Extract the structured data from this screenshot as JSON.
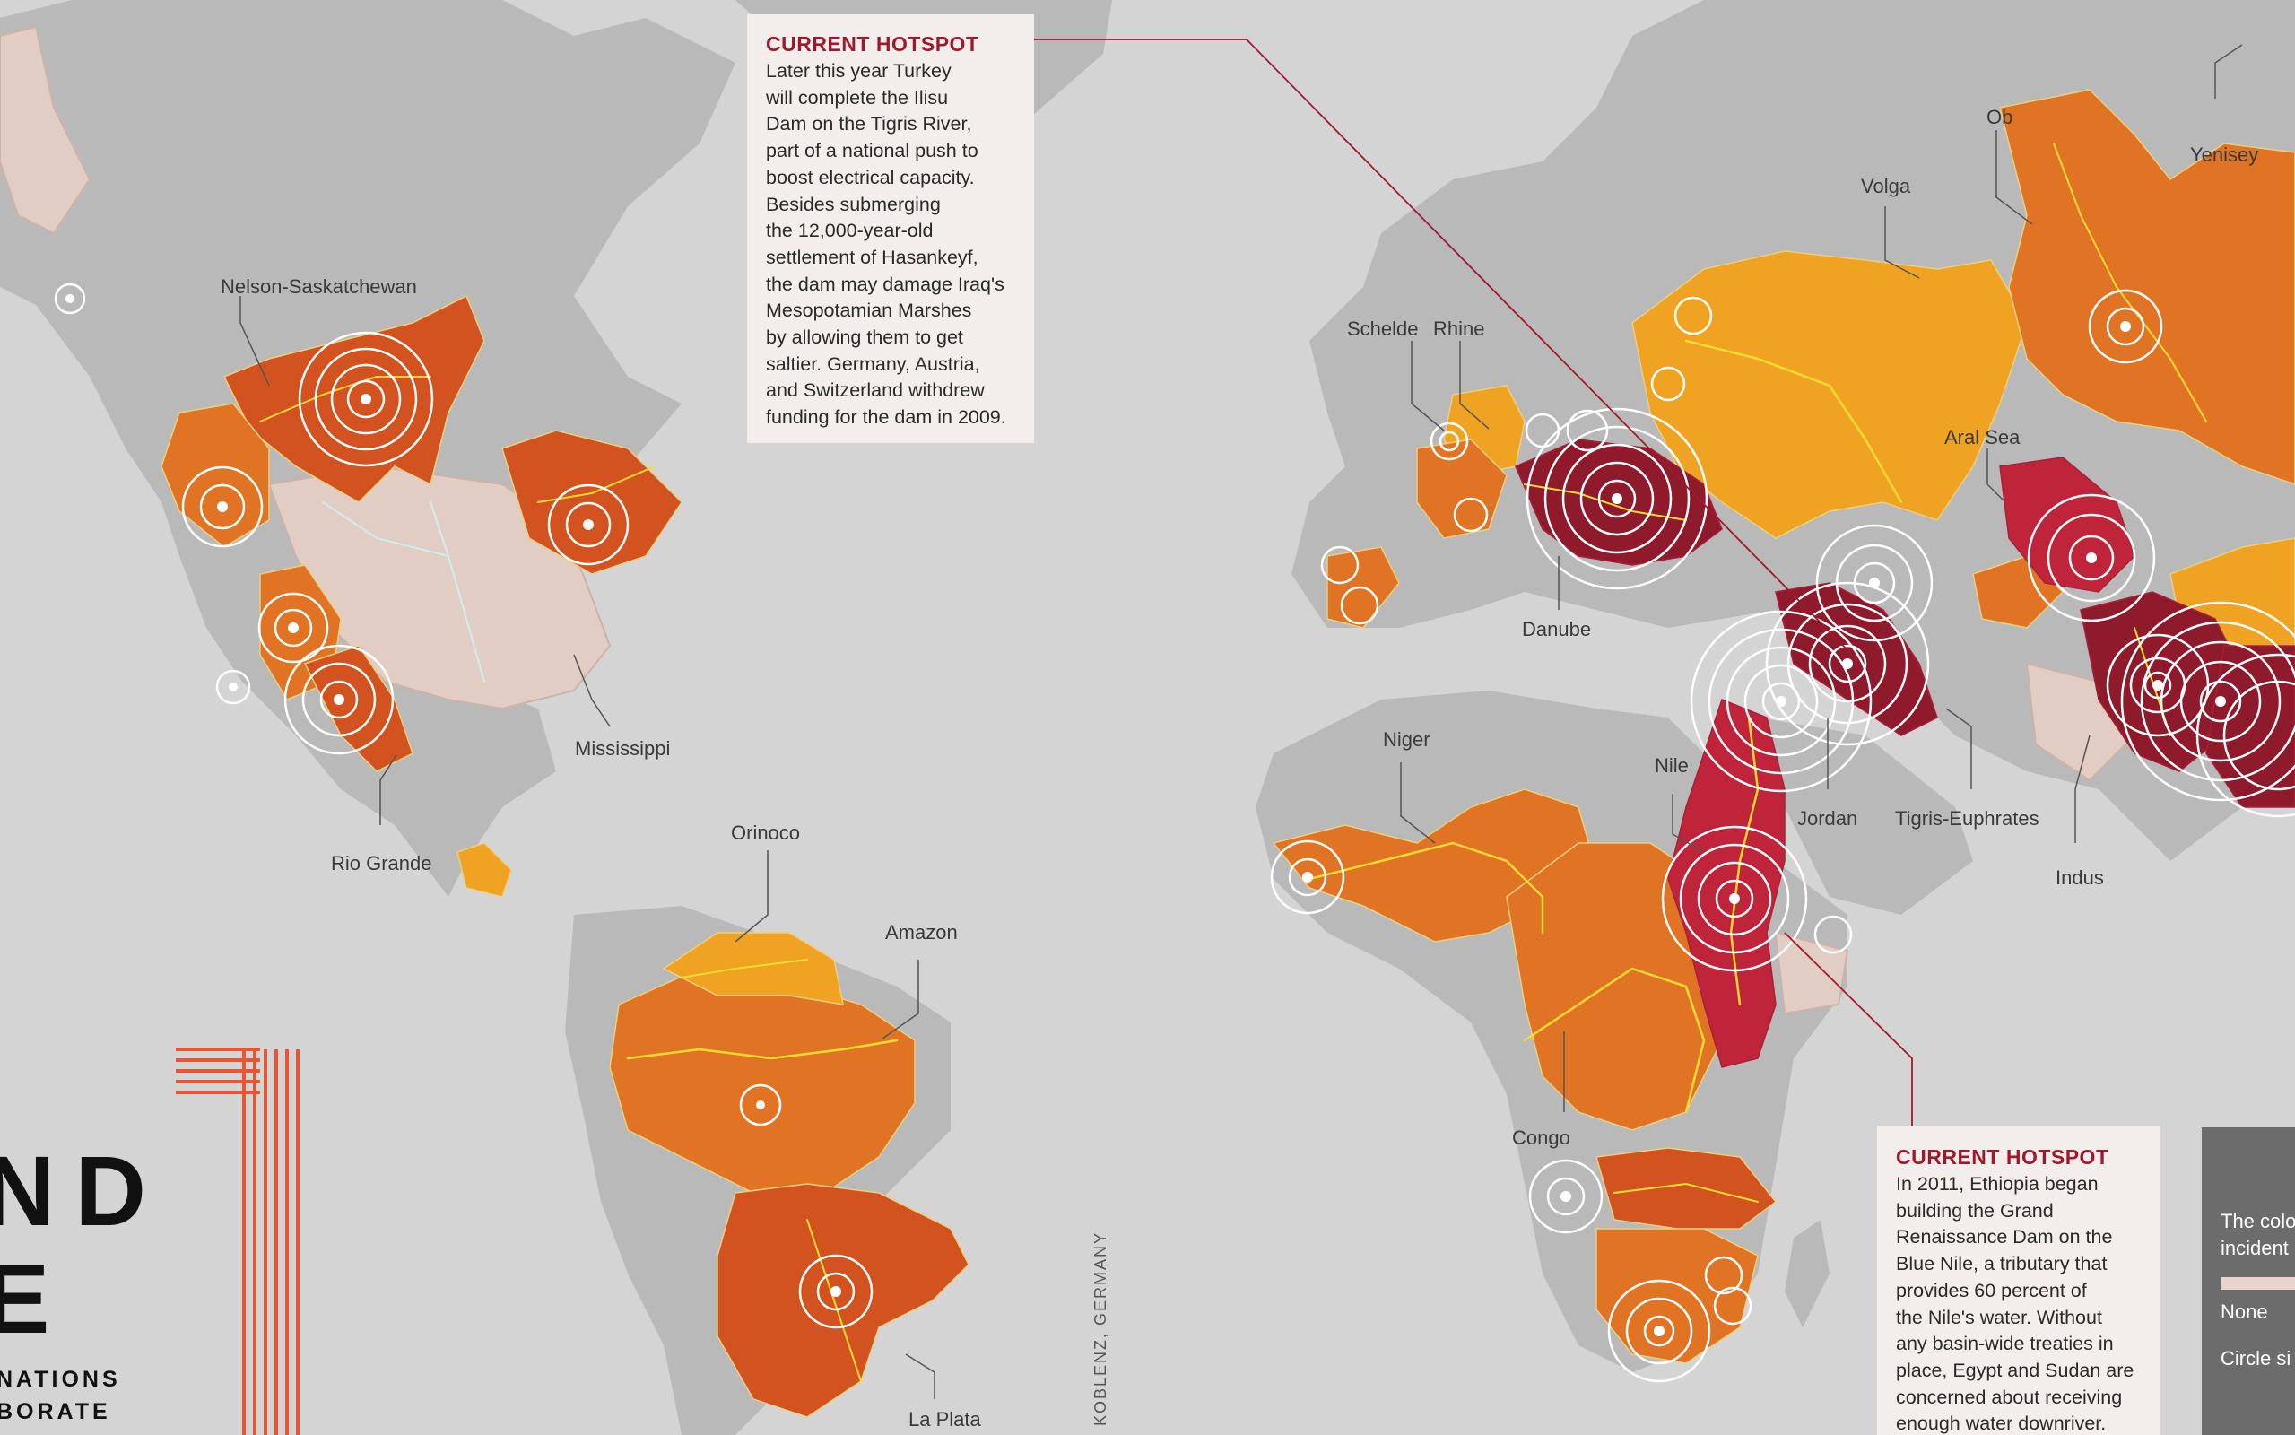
{
  "colors": {
    "ocean": "#d4d4d4",
    "land": "#b9b9b9",
    "basin_low": "#e2cdc4",
    "basin_yellow": "#f0a322",
    "basin_orange": "#e07424",
    "basin_deep_orange": "#d35320",
    "basin_red": "#c0243a",
    "basin_dark_red": "#8e1a2c",
    "river_yellow": "#f5dc30",
    "river_cyan": "#cdeeee",
    "accent_red": "#a0192b",
    "title_bars": "#e85535"
  },
  "basins": {
    "nelson_saskatchewan": "Nelson-Saskatchewan",
    "mississippi": "Mississippi",
    "rio_grande": "Rio Grande",
    "orinoco": "Orinoco",
    "amazon": "Amazon",
    "la_plata": "La Plata",
    "schelde": "Schelde",
    "rhine": "Rhine",
    "danube": "Danube",
    "volga": "Volga",
    "ob": "Ob",
    "yenisey": "Yenisey",
    "aral_sea": "Aral Sea",
    "niger": "Niger",
    "nile": "Nile",
    "jordan": "Jordan",
    "tigris_euphrates": "Tigris-Euphrates",
    "indus": "Indus",
    "congo": "Congo"
  },
  "hotspot1": {
    "heading": "CURRENT HOTSPOT",
    "body": "Later this year Turkey\nwill complete the Ilisu\nDam on the Tigris River,\npart of a national push to\nboost electrical capacity.\nBesides submerging\nthe 12,000-year-old\nsettlement of Hasankeyf,\nthe dam may damage Iraq's\nMesopotamian Marshes\nby allowing them to get\nsaltier. Germany, Austria,\nand Switzerland withdrew\nfunding for the dam in 2009."
  },
  "hotspot2": {
    "heading": "CURRENT HOTSPOT",
    "body": "In 2011, Ethiopia began\nbuilding the Grand\nRenaissance Dam on the\nBlue Nile, a tributary that\nprovides 60 percent of\nthe Nile's water. Without\nany basin-wide treaties in\nplace, Egypt and Sudan are\nconcerned about receiving\nenough water downriver."
  },
  "legend": {
    "line1": "The colo",
    "line2": "incident",
    "swatch_label": "None",
    "circle_label": "Circle si"
  },
  "title": {
    "line1": "ND",
    "line2": "E",
    "sub1": "NATIONS",
    "sub2": "BORATE"
  },
  "credit": "KOBLENZ, GERMANY"
}
